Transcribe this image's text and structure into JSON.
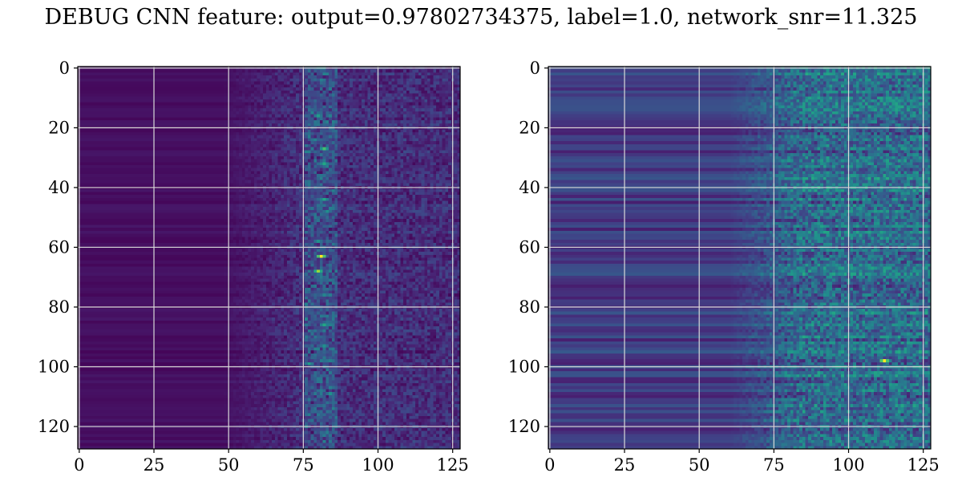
{
  "title": "DEBUG CNN feature: output=0.97802734375, label=1.0, network_snr=11.325",
  "chart_data": [
    {
      "type": "heatmap",
      "name": "left-heatmap",
      "title": "",
      "xlabel": "",
      "ylabel": "",
      "colormap": "viridis",
      "shape": [
        128,
        128
      ],
      "xlim": [
        -0.5,
        127.5
      ],
      "ylim": [
        127.5,
        -0.5
      ],
      "xticks": [
        0,
        25,
        50,
        75,
        100,
        125
      ],
      "yticks": [
        0,
        20,
        40,
        60,
        80,
        100,
        120
      ],
      "xtick_labels": [
        "0",
        "25",
        "50",
        "75",
        "100",
        "125"
      ],
      "ytick_labels": [
        "0",
        "20",
        "40",
        "60",
        "80",
        "100",
        "120"
      ],
      "grid": true,
      "value_range": [
        0,
        1
      ],
      "background_level": 0.04,
      "texture": {
        "onset_column": 48,
        "texture_level": 0.18,
        "vertical_streak_columns": [
          76,
          86
        ],
        "vertical_streak_level": 0.4
      },
      "hotspots": [
        {
          "x": 81,
          "y": 63,
          "value": 1.0
        },
        {
          "x": 80,
          "y": 68,
          "value": 0.85
        },
        {
          "x": 80,
          "y": 16,
          "value": 0.55
        },
        {
          "x": 82,
          "y": 27,
          "value": 0.7
        },
        {
          "x": 82,
          "y": 32,
          "value": 0.6
        },
        {
          "x": 82,
          "y": 44,
          "value": 0.6
        },
        {
          "x": 83,
          "y": 48,
          "value": 0.5
        },
        {
          "x": 80,
          "y": 58,
          "value": 0.5
        },
        {
          "x": 82,
          "y": 86,
          "value": 0.6
        },
        {
          "x": 82,
          "y": 93,
          "value": 0.5
        },
        {
          "x": 77,
          "y": 99,
          "value": 0.55
        },
        {
          "x": 84,
          "y": 109,
          "value": 0.5
        },
        {
          "x": 80,
          "y": 104,
          "value": 0.4
        },
        {
          "x": 82,
          "y": 76,
          "value": 0.45
        }
      ]
    },
    {
      "type": "heatmap",
      "name": "right-heatmap",
      "title": "",
      "xlabel": "",
      "ylabel": "",
      "colormap": "viridis",
      "shape": [
        128,
        128
      ],
      "xlim": [
        -0.5,
        127.5
      ],
      "ylim": [
        127.5,
        -0.5
      ],
      "xticks": [
        0,
        25,
        50,
        75,
        100,
        125
      ],
      "yticks": [
        0,
        20,
        40,
        60,
        80,
        100,
        120
      ],
      "xtick_labels": [
        "0",
        "25",
        "50",
        "75",
        "100",
        "125"
      ],
      "ytick_labels": [
        "0",
        "20",
        "40",
        "60",
        "80",
        "100",
        "120"
      ],
      "grid": true,
      "value_range": [
        0,
        1
      ],
      "background_level": 0.18,
      "texture": {
        "onset_column": 60,
        "texture_level": 0.35,
        "vertical_streak_columns": [],
        "vertical_streak_level": 0
      },
      "hotspots": [
        {
          "x": 112,
          "y": 98,
          "value": 1.0
        },
        {
          "x": 90,
          "y": 40,
          "value": 0.6
        },
        {
          "x": 110,
          "y": 103,
          "value": 0.55
        },
        {
          "x": 95,
          "y": 96,
          "value": 0.5
        },
        {
          "x": 90,
          "y": 82,
          "value": 0.5
        },
        {
          "x": 92,
          "y": 76,
          "value": 0.5
        },
        {
          "x": 100,
          "y": 24,
          "value": 0.45
        },
        {
          "x": 88,
          "y": 54,
          "value": 0.45
        },
        {
          "x": 105,
          "y": 18,
          "value": 0.45
        }
      ]
    }
  ]
}
